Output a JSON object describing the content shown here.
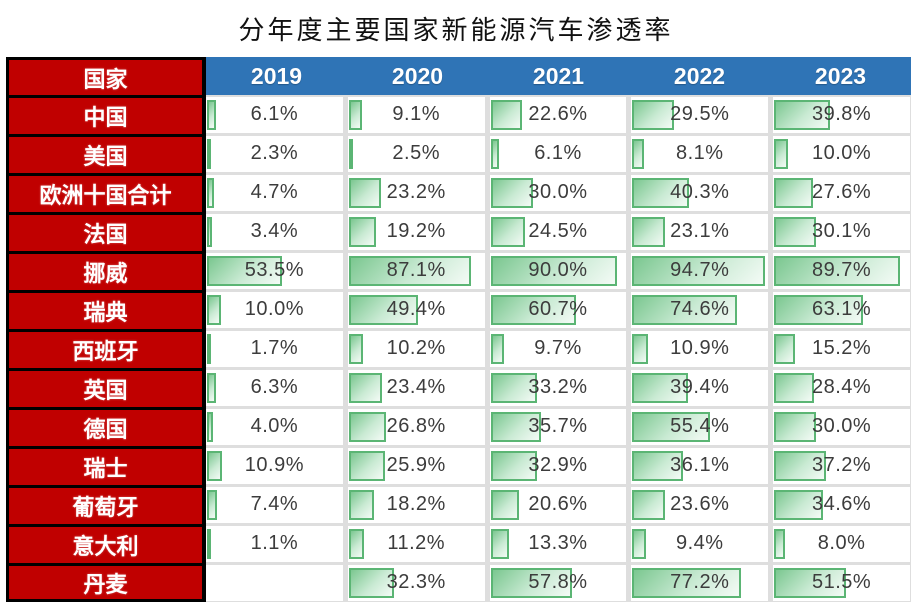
{
  "title": "分年度主要国家新能源汽车渗透率",
  "header": {
    "country_label": "国家",
    "years": [
      "2019",
      "2020",
      "2021",
      "2022",
      "2023"
    ]
  },
  "unit_suffix": "%",
  "colors": {
    "red": "#C00000",
    "blue": "#2F74B6",
    "grid": "#DEDEDE",
    "bar_border": "#5BB574",
    "bar_fill_start": "#7BC790",
    "bar_fill_end": "#F4FBF6",
    "value_text": "#3C3C3C"
  },
  "chart_data": {
    "type": "table",
    "title": "分年度主要国家新能源汽车渗透率",
    "columns": [
      "国家",
      "2019",
      "2020",
      "2021",
      "2022",
      "2023"
    ],
    "unit": "%",
    "bar_scale_max": 94.7,
    "bar_style": "green-gradient-databar",
    "rows": [
      {
        "country": "中国",
        "values": [
          6.1,
          9.1,
          22.6,
          29.5,
          39.8
        ]
      },
      {
        "country": "美国",
        "values": [
          2.3,
          2.5,
          6.1,
          8.1,
          10.0
        ]
      },
      {
        "country": "欧洲十国合计",
        "values": [
          4.7,
          23.2,
          30.0,
          40.3,
          27.6
        ]
      },
      {
        "country": "法国",
        "values": [
          3.4,
          19.2,
          24.5,
          23.1,
          30.1
        ]
      },
      {
        "country": "挪威",
        "values": [
          53.5,
          87.1,
          90.0,
          94.7,
          89.7
        ]
      },
      {
        "country": "瑞典",
        "values": [
          10.0,
          49.4,
          60.7,
          74.6,
          63.1
        ]
      },
      {
        "country": "西班牙",
        "values": [
          1.7,
          10.2,
          9.7,
          10.9,
          15.2
        ]
      },
      {
        "country": "英国",
        "values": [
          6.3,
          23.4,
          33.2,
          39.4,
          28.4
        ]
      },
      {
        "country": "德国",
        "values": [
          4.0,
          26.8,
          35.7,
          55.4,
          30.0
        ]
      },
      {
        "country": "瑞士",
        "values": [
          10.9,
          25.9,
          32.9,
          36.1,
          37.2
        ]
      },
      {
        "country": "葡萄牙",
        "values": [
          7.4,
          18.2,
          20.6,
          23.6,
          34.6
        ]
      },
      {
        "country": "意大利",
        "values": [
          1.1,
          11.2,
          13.3,
          9.4,
          8.0
        ]
      },
      {
        "country": "丹麦",
        "values": [
          null,
          32.3,
          57.8,
          77.2,
          51.5
        ]
      }
    ]
  }
}
